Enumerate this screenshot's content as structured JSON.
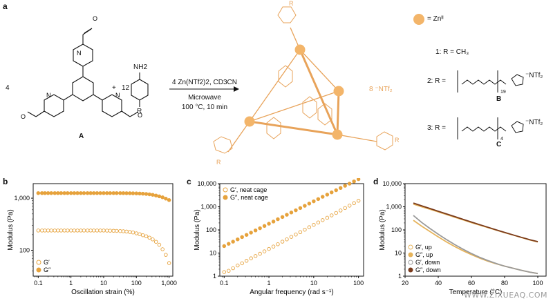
{
  "panel_a": {
    "letter": "a",
    "coef_aldehyde": "4",
    "plus": "+",
    "coef_amine": "12",
    "label_A": "A",
    "amine_top": "NH2",
    "amine_R": "R",
    "cond_line1": "4 Zn(NTf2)2, CD3CN",
    "cond_line2": "Microwave",
    "cond_line3": "100 °C, 10 min",
    "counterion": "8  ⁻NTf₂",
    "zn_legend": "= Znᴵᴵ",
    "r1": "1: R = CH₃",
    "r2": "2: R =",
    "r3": "3: R =",
    "B_label": "B",
    "C_label": "C",
    "ntf2": "⁻NTf₂",
    "sub19": "19",
    "sub4": "4",
    "cage_R": "R",
    "colors": {
      "zn": "#f3b56a",
      "cage": "#e8a35a",
      "struct": "#111111"
    }
  },
  "chart_data": [
    {
      "type": "scatter",
      "panel": "b",
      "xlabel": "Oscillation strain (%)",
      "ylabel": "Modulus (Pa)",
      "xscale": "log",
      "yscale": "log",
      "xlim": [
        0.07,
        1300
      ],
      "ylim": [
        32,
        1900
      ],
      "xticks": [
        "0.1",
        "1",
        "10",
        "100",
        "1,000"
      ],
      "yticks": [
        "100",
        "1,000"
      ],
      "legend_position": "bottom-left",
      "series": [
        {
          "name": "G′",
          "marker": "open",
          "color": "#e6a23c",
          "x": [
            0.1,
            0.13,
            0.16,
            0.2,
            0.25,
            0.32,
            0.4,
            0.5,
            0.63,
            0.79,
            1,
            1.26,
            1.58,
            2,
            2.5,
            3.2,
            4,
            5,
            6.3,
            7.9,
            10,
            12.6,
            15.8,
            20,
            25,
            32,
            40,
            50,
            63,
            79,
            100,
            126,
            158,
            200,
            251,
            316,
            398,
            501,
            631,
            794,
            1000
          ],
          "y": [
            240,
            240,
            240,
            240,
            240,
            240,
            240,
            240,
            240,
            240,
            240,
            240,
            240,
            240,
            240,
            240,
            240,
            240,
            240,
            240,
            240,
            239,
            238,
            237,
            236,
            234,
            232,
            229,
            225,
            220,
            212,
            204,
            195,
            186,
            175,
            162,
            146,
            128,
            105,
            82,
            57
          ]
        },
        {
          "name": "G″",
          "marker": "filled",
          "color": "#e6a23c",
          "x": [
            0.1,
            0.13,
            0.16,
            0.2,
            0.25,
            0.32,
            0.4,
            0.5,
            0.63,
            0.79,
            1,
            1.26,
            1.58,
            2,
            2.5,
            3.2,
            4,
            5,
            6.3,
            7.9,
            10,
            12.6,
            15.8,
            20,
            25,
            32,
            40,
            50,
            63,
            79,
            100,
            126,
            158,
            200,
            251,
            316,
            398,
            501,
            631,
            794,
            1000
          ],
          "y": [
            1250,
            1250,
            1250,
            1250,
            1250,
            1250,
            1250,
            1250,
            1250,
            1250,
            1250,
            1250,
            1250,
            1250,
            1250,
            1250,
            1250,
            1250,
            1250,
            1250,
            1250,
            1250,
            1250,
            1250,
            1250,
            1250,
            1248,
            1246,
            1244,
            1240,
            1235,
            1228,
            1218,
            1205,
            1185,
            1160,
            1125,
            1085,
            1040,
            980,
            920
          ]
        }
      ]
    },
    {
      "type": "scatter",
      "panel": "c",
      "xlabel": "Angular frequency (rad s⁻¹)",
      "ylabel": "Modulus (Pa)",
      "xscale": "log",
      "yscale": "log",
      "xlim": [
        0.08,
        130
      ],
      "ylim": [
        1,
        10000
      ],
      "xticks": [
        "0.1",
        "1",
        "10",
        "100"
      ],
      "yticks": [
        "1",
        "10",
        "100",
        "1,000",
        "10,000"
      ],
      "legend_position": "top-left",
      "series": [
        {
          "name": "G′, neat cage",
          "marker": "open",
          "color": "#e6a23c",
          "x": [
            0.1,
            0.126,
            0.158,
            0.2,
            0.251,
            0.316,
            0.398,
            0.501,
            0.631,
            0.794,
            1,
            1.26,
            1.58,
            2,
            2.51,
            3.16,
            3.98,
            5.01,
            6.31,
            7.94,
            10,
            12.6,
            15.8,
            20,
            25.1,
            31.6,
            39.8,
            50.1,
            63.1,
            79.4,
            100
          ],
          "y": [
            1.5,
            1.7,
            2.2,
            2.9,
            3.6,
            4.6,
            5.9,
            7.4,
            9.3,
            11.8,
            15,
            19,
            24,
            31,
            39,
            50,
            63,
            80,
            102,
            130,
            165,
            210,
            265,
            335,
            425,
            540,
            690,
            880,
            1120,
            1430,
            1820
          ]
        },
        {
          "name": "G″, neat cage",
          "marker": "filled",
          "color": "#e6a23c",
          "x": [
            0.1,
            0.126,
            0.158,
            0.2,
            0.251,
            0.316,
            0.398,
            0.501,
            0.631,
            0.794,
            1,
            1.26,
            1.58,
            2,
            2.51,
            3.16,
            3.98,
            5.01,
            6.31,
            7.94,
            10,
            12.6,
            15.8,
            20,
            25.1,
            31.6,
            39.8,
            50.1,
            63.1,
            79.4,
            100
          ],
          "y": [
            20,
            25,
            31,
            39,
            49,
            61,
            76,
            95,
            118,
            148,
            185,
            230,
            290,
            360,
            450,
            565,
            705,
            880,
            1100,
            1380,
            1720,
            2150,
            2700,
            3350,
            4200,
            5200,
            6500,
            8100,
            10000,
            12500,
            15600
          ]
        }
      ]
    },
    {
      "type": "line",
      "panel": "d",
      "xlabel": "Temperature (°C)",
      "ylabel": "Modulus (Pa)",
      "xscale": "linear",
      "yscale": "log",
      "xlim": [
        20,
        105
      ],
      "ylim": [
        1,
        10000
      ],
      "xticks": [
        "20",
        "40",
        "60",
        "80",
        "100"
      ],
      "yticks": [
        "1",
        "10",
        "100",
        "1,000",
        "10,000"
      ],
      "legend_position": "bottom-left",
      "series": [
        {
          "name": "G′, up",
          "marker": "open",
          "color": "#e6b35a",
          "x": [
            25,
            30,
            35,
            40,
            45,
            50,
            55,
            60,
            65,
            70,
            75,
            80,
            85,
            90,
            95,
            100
          ],
          "y": [
            260,
            145,
            85,
            50,
            30,
            19,
            12.5,
            8.5,
            6,
            4.4,
            3.4,
            2.7,
            2.2,
            1.8,
            1.5,
            1.3
          ]
        },
        {
          "name": "G″, up",
          "marker": "filled",
          "color": "#e6b35a",
          "x": [
            25,
            30,
            35,
            40,
            45,
            50,
            55,
            60,
            65,
            70,
            75,
            80,
            85,
            90,
            95,
            100
          ],
          "y": [
            1300,
            1000,
            780,
            600,
            460,
            350,
            270,
            205,
            160,
            125,
            97,
            76,
            60,
            47,
            37,
            30
          ]
        },
        {
          "name": "G′, down",
          "marker": "open",
          "color": "#9a9a9a",
          "x": [
            25,
            30,
            35,
            40,
            45,
            50,
            55,
            60,
            65,
            70,
            75,
            80,
            85,
            90,
            95,
            100
          ],
          "y": [
            420,
            210,
            115,
            65,
            38,
            23,
            14.5,
            9.5,
            6.5,
            4.7,
            3.5,
            2.7,
            2.2,
            1.8,
            1.5,
            1.3
          ]
        },
        {
          "name": "G″, down",
          "marker": "filled",
          "color": "#7a3b1c",
          "x": [
            25,
            30,
            35,
            40,
            45,
            50,
            55,
            60,
            65,
            70,
            75,
            80,
            85,
            90,
            95,
            100
          ],
          "y": [
            1450,
            1100,
            840,
            640,
            490,
            375,
            285,
            218,
            168,
            130,
            100,
            78,
            61,
            48,
            38,
            31
          ]
        }
      ]
    }
  ],
  "watermark": "WWW.ZIXUEAQ.COM"
}
